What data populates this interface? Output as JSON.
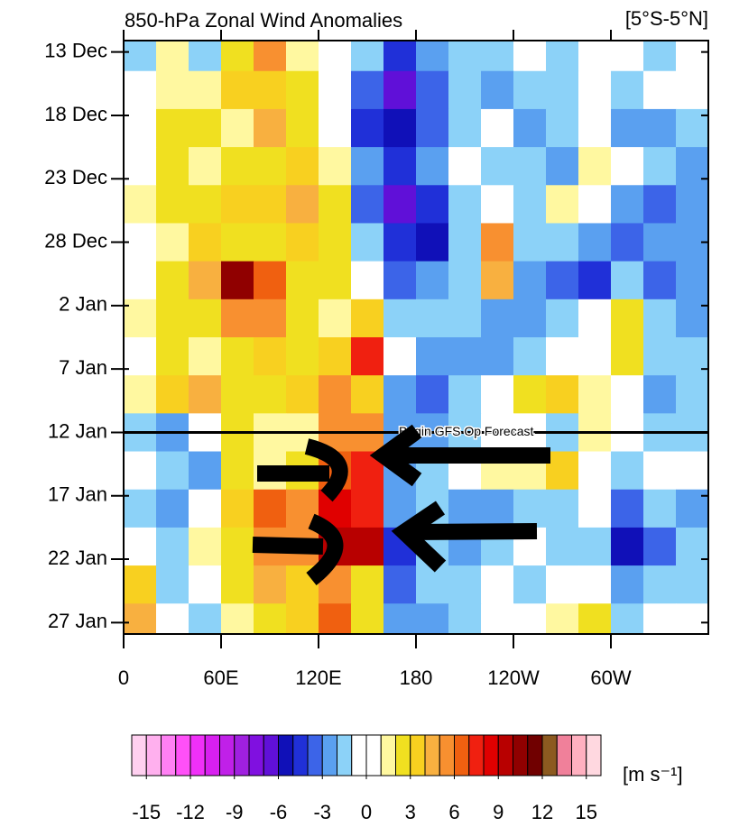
{
  "chart_data": {
    "type": "heatmap",
    "title": "850-hPa Zonal Wind Anomalies",
    "subtitle": "[5°S-5°N]",
    "x": [
      10,
      30,
      50,
      70,
      90,
      110,
      130,
      150,
      170,
      190,
      210,
      230,
      250,
      270,
      290,
      310,
      330,
      350
    ],
    "y": [
      0,
      3,
      6,
      9,
      12,
      15,
      18,
      21,
      24,
      27,
      30,
      33,
      36,
      39,
      42,
      45
    ],
    "z": [
      [
        -2,
        1,
        -2,
        2,
        5,
        1,
        -1,
        -2,
        -5,
        -3,
        -2,
        -2,
        -1,
        -2,
        0,
        -1,
        -2,
        -1
      ],
      [
        0,
        1,
        1,
        3,
        3,
        2,
        -1,
        -4,
        -7,
        -4,
        -2,
        -3,
        -2,
        -2,
        0,
        -2,
        -1,
        -1
      ],
      [
        -1,
        2,
        2,
        1,
        4,
        2,
        0,
        -5,
        -6,
        -4,
        -2,
        -1,
        -3,
        -2,
        0,
        -3,
        -3,
        -2
      ],
      [
        0,
        2,
        1,
        2,
        2,
        3,
        1,
        -3,
        -5,
        -3,
        -1,
        -2,
        -2,
        -3,
        1,
        -1,
        -2,
        -3
      ],
      [
        1,
        2,
        2,
        3,
        3,
        4,
        2,
        -4,
        -7,
        -5,
        -2,
        -1,
        -2,
        1,
        -1,
        -3,
        -4,
        -3
      ],
      [
        -1,
        1,
        3,
        2,
        2,
        3,
        2,
        -2,
        -5,
        -6,
        -2,
        5,
        -2,
        -2,
        -3,
        -4,
        -3,
        -3
      ],
      [
        0,
        2,
        4,
        10,
        6,
        2,
        2,
        -1,
        -4,
        -3,
        -2,
        4,
        -3,
        -4,
        -5,
        -2,
        -4,
        -3
      ],
      [
        1,
        2,
        2,
        5,
        5,
        2,
        1,
        3,
        -2,
        -2,
        -2,
        -3,
        -3,
        -2,
        -1,
        2,
        -2,
        -3
      ],
      [
        0,
        2,
        1,
        2,
        3,
        2,
        3,
        7,
        -1,
        -3,
        -3,
        -3,
        -2,
        0,
        -1,
        2,
        -2,
        -2
      ],
      [
        1,
        3,
        4,
        2,
        2,
        3,
        5,
        3,
        -3,
        -4,
        -2,
        -1,
        2,
        3,
        1,
        -1,
        -3,
        -2
      ],
      [
        -2,
        -3,
        -1,
        2,
        1,
        1,
        5,
        5,
        -3,
        -3,
        -2,
        -1,
        -1,
        -2,
        1,
        -1,
        -2,
        -2
      ],
      [
        -1,
        -2,
        -3,
        2,
        1,
        2,
        6,
        7,
        -3,
        -2,
        -1,
        1,
        1,
        3,
        -1,
        -2,
        -1,
        -1
      ],
      [
        -2,
        -3,
        -1,
        3,
        6,
        5,
        8,
        7,
        -3,
        -2,
        -3,
        -3,
        -2,
        -2,
        -1,
        -4,
        -2,
        -3
      ],
      [
        -1,
        -2,
        1,
        2,
        5,
        5,
        9,
        9,
        -5,
        -2,
        -3,
        -2,
        -1,
        -2,
        -2,
        -6,
        -4,
        -2
      ],
      [
        3,
        -2,
        -1,
        2,
        4,
        3,
        5,
        2,
        -4,
        -2,
        -2,
        -1,
        -2,
        -1,
        0,
        -3,
        -2,
        -2
      ],
      [
        4,
        -1,
        -2,
        1,
        2,
        3,
        6,
        2,
        -3,
        -3,
        -2,
        0,
        -1,
        1,
        2,
        -2,
        -1,
        -1
      ]
    ],
    "xlim": [
      0,
      360
    ],
    "xticks": [
      0,
      {
        "value": 60,
        "label": "60E"
      },
      {
        "value": 120,
        "label": "120E"
      },
      180,
      {
        "value": 240,
        "label": "120W"
      },
      {
        "value": 300,
        "label": "60W"
      }
    ],
    "ylim": [
      -0.9,
      45.9
    ],
    "yticks": [
      {
        "value": 0,
        "label": "13 Dec"
      },
      {
        "value": 5,
        "label": "18 Dec"
      },
      {
        "value": 10,
        "label": "23 Dec"
      },
      {
        "value": 15,
        "label": "28 Dec"
      },
      {
        "value": 20,
        "label": "2 Jan"
      },
      {
        "value": 25,
        "label": "7 Jan"
      },
      {
        "value": 30,
        "label": "12 Jan"
      },
      {
        "value": 35,
        "label": "17 Jan"
      },
      {
        "value": 40,
        "label": "22 Jan"
      },
      {
        "value": 45,
        "label": "27 Jan"
      }
    ],
    "annotation": {
      "text": "Begin GFS Op Forecast",
      "y": 30
    },
    "colorbar": {
      "label": "[m s⁻¹]",
      "lim": [
        -16,
        16
      ],
      "ticks": [
        -15,
        -12,
        -9,
        -6,
        -3,
        0,
        3,
        6,
        9,
        12,
        15
      ],
      "colors": [
        "#ffd0f0",
        "#ffb0ee",
        "#ff80f4",
        "#ff50f8",
        "#f030f8",
        "#d820f0",
        "#c020e8",
        "#a020e0",
        "#8010e0",
        "#6010d8",
        "#1010b8",
        "#2030d8",
        "#3c64e8",
        "#5aa0f0",
        "#8cd2f8",
        "#ffffff",
        "#ffffff",
        "#fff8a0",
        "#f0e020",
        "#f8d020",
        "#f8b040",
        "#f89030",
        "#f06010",
        "#f02010",
        "#e00000",
        "#b80000",
        "#900000",
        "#700000",
        "#8c5a20",
        "#f0809a",
        "#ffb0c0",
        "#ffd8e0"
      ]
    }
  }
}
